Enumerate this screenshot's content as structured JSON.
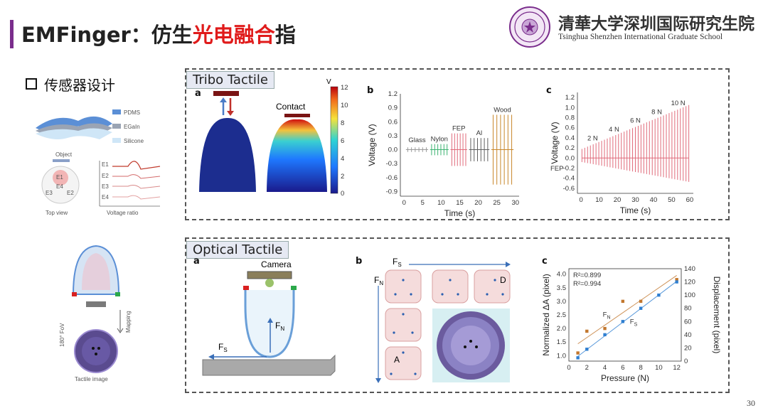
{
  "header": {
    "title_prefix": "EMFinger：仿生",
    "title_highlight": "光电融合",
    "title_suffix": "指",
    "institution_cn": "清華大学深圳国际研究生院",
    "institution_en": "Tsinghua Shenzhen International Graduate School"
  },
  "section": {
    "label": "传感器设计"
  },
  "left_panel": {
    "layers": [
      "PDMS",
      "EGaIn",
      "Silicone"
    ],
    "object_label": "Object",
    "electrodes": [
      "E1",
      "E2",
      "E3",
      "E4"
    ],
    "top_view_label": "Top view",
    "voltage_ratio_label": "Voltage ratio",
    "fov_label": "180° FoV",
    "mapping_label": "Mapping",
    "tactile_image_label": "Tactile image"
  },
  "tribo": {
    "title": "Tribo Tactile",
    "a_label": "a",
    "b_label": "b",
    "c_label": "c",
    "contact_label": "Contact",
    "colorbar_unit": "V",
    "colorbar_ticks": [
      "12",
      "10",
      "8",
      "6",
      "4",
      "2",
      "0"
    ],
    "fep_label": "FEP"
  },
  "optical": {
    "title": "Optical Tactile",
    "a_label": "a",
    "b_label": "b",
    "c_label": "c",
    "camera_label": "Camera",
    "fn_label": "F",
    "fn_sub": "N",
    "fs_label": "F",
    "fs_sub": "S",
    "a_marker": "A",
    "d_marker": "D"
  },
  "page_number": "30",
  "colors": {
    "accent_bar": "#7a2d8c",
    "highlight": "#e01b1b",
    "tribo_line": "#e06a7a",
    "orange": "#c2772e",
    "blue": "#2f7fd1"
  },
  "chart_data": [
    {
      "type": "line",
      "id": "tribo-b",
      "xlabel": "Time (s)",
      "ylabel": "Voltage (V)",
      "xlim": [
        -1,
        31
      ],
      "ylim": [
        -1.0,
        1.2
      ],
      "xticks": [
        0,
        5,
        10,
        15,
        20,
        25,
        30
      ],
      "yticks": [
        -0.9,
        -0.6,
        -0.3,
        0.0,
        0.3,
        0.6,
        0.9,
        1.2
      ],
      "series": [
        {
          "name": "Glass",
          "x_start": 0.5,
          "x_end": 6.5,
          "amplitude": 0.05,
          "color": "#9a9a9a"
        },
        {
          "name": "Nylon",
          "x_start": 7,
          "x_end": 12,
          "amplitude": 0.12,
          "color": "#3cb371"
        },
        {
          "name": "FEP",
          "x_start": 12.5,
          "x_end": 17,
          "amplitude": 0.35,
          "color": "#e06a7a"
        },
        {
          "name": "Al",
          "x_start": 17.5,
          "x_end": 23,
          "amplitude": 0.25,
          "color": "#606060"
        },
        {
          "name": "Wood",
          "x_start": 23.5,
          "x_end": 29.5,
          "amplitude": 0.75,
          "color": "#c8862a"
        }
      ]
    },
    {
      "type": "line",
      "id": "tribo-c",
      "xlabel": "Time (s)",
      "ylabel": "Voltage (V)",
      "xlim": [
        -2,
        62
      ],
      "ylim": [
        -0.7,
        1.3
      ],
      "xticks": [
        0,
        10,
        20,
        30,
        40,
        50,
        60
      ],
      "yticks": [
        -0.6,
        -0.4,
        -0.2,
        0.0,
        0.2,
        0.4,
        0.6,
        0.8,
        1.0,
        1.2
      ],
      "annotations": [
        "2 N",
        "4 N",
        "6 N",
        "8 N",
        "10 N"
      ],
      "series": [
        {
          "name": "FEP",
          "pulses": 39,
          "x_start": 0.5,
          "x_end": 59.5,
          "amp_start": 0.18,
          "amp_end": 1.05,
          "color": "#e06a7a"
        }
      ]
    },
    {
      "type": "scatter",
      "id": "optical-c",
      "xlabel": "Pressure (N)",
      "ylabel": "Normalized ΔA (pixel)",
      "y2label": "Displacement (pixel)",
      "xlim": [
        0,
        12.5
      ],
      "ylim": [
        0.8,
        4.2
      ],
      "y2lim": [
        0,
        140
      ],
      "xticks": [
        0,
        2,
        4,
        6,
        8,
        10,
        12
      ],
      "yticks": [
        1.0,
        1.5,
        2.0,
        2.5,
        3.0,
        3.5,
        4.0
      ],
      "y2ticks": [
        0,
        20,
        40,
        60,
        80,
        100,
        120,
        140
      ],
      "series": [
        {
          "name": "F",
          "sub": "N",
          "axis": "left",
          "r2": "R²=0.899",
          "color": "#c2772e",
          "x": [
            1,
            2,
            4,
            6,
            8,
            12
          ],
          "y": [
            1.1,
            1.9,
            2.0,
            3.0,
            3.0,
            3.8
          ]
        },
        {
          "name": "F",
          "sub": "S",
          "axis": "right",
          "r2": "R²=0.994",
          "color": "#2f7fd1",
          "x": [
            1,
            2,
            4,
            6,
            8,
            10,
            12
          ],
          "y": [
            5,
            18,
            40,
            60,
            80,
            100,
            120
          ]
        }
      ]
    }
  ]
}
